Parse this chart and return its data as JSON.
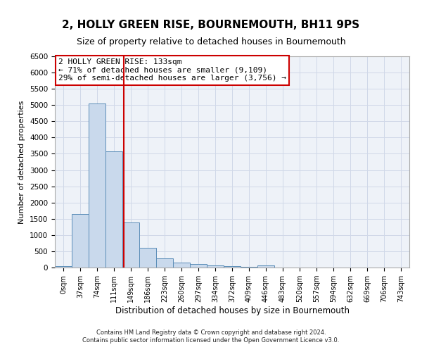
{
  "title": "2, HOLLY GREEN RISE, BOURNEMOUTH, BH11 9PS",
  "subtitle": "Size of property relative to detached houses in Bournemouth",
  "xlabel": "Distribution of detached houses by size in Bournemouth",
  "ylabel": "Number of detached properties",
  "bar_color": "#c9d9ec",
  "bar_edge_color": "#5b8db8",
  "categories": [
    "0sqm",
    "37sqm",
    "74sqm",
    "111sqm",
    "149sqm",
    "186sqm",
    "223sqm",
    "260sqm",
    "297sqm",
    "334sqm",
    "372sqm",
    "409sqm",
    "446sqm",
    "483sqm",
    "520sqm",
    "557sqm",
    "594sqm",
    "632sqm",
    "669sqm",
    "706sqm",
    "743sqm"
  ],
  "values": [
    50,
    1650,
    5050,
    3580,
    1380,
    610,
    290,
    150,
    110,
    70,
    45,
    30,
    55,
    0,
    0,
    0,
    0,
    0,
    0,
    0,
    0
  ],
  "ylim": [
    0,
    6500
  ],
  "yticks": [
    0,
    500,
    1000,
    1500,
    2000,
    2500,
    3000,
    3500,
    4000,
    4500,
    5000,
    5500,
    6000,
    6500
  ],
  "property_size": 133,
  "property_label": "2 HOLLY GREEN RISE: 133sqm",
  "annotation_line1": "← 71% of detached houses are smaller (9,109)",
  "annotation_line2": "29% of semi-detached houses are larger (3,756) →",
  "annotation_box_color": "#ffffff",
  "annotation_box_edge": "#cc0000",
  "vline_color": "#cc0000",
  "footer1": "Contains HM Land Registry data © Crown copyright and database right 2024.",
  "footer2": "Contains public sector information licensed under the Open Government Licence v3.0.",
  "grid_color": "#d0d8e8",
  "background_color": "#eef2f8"
}
